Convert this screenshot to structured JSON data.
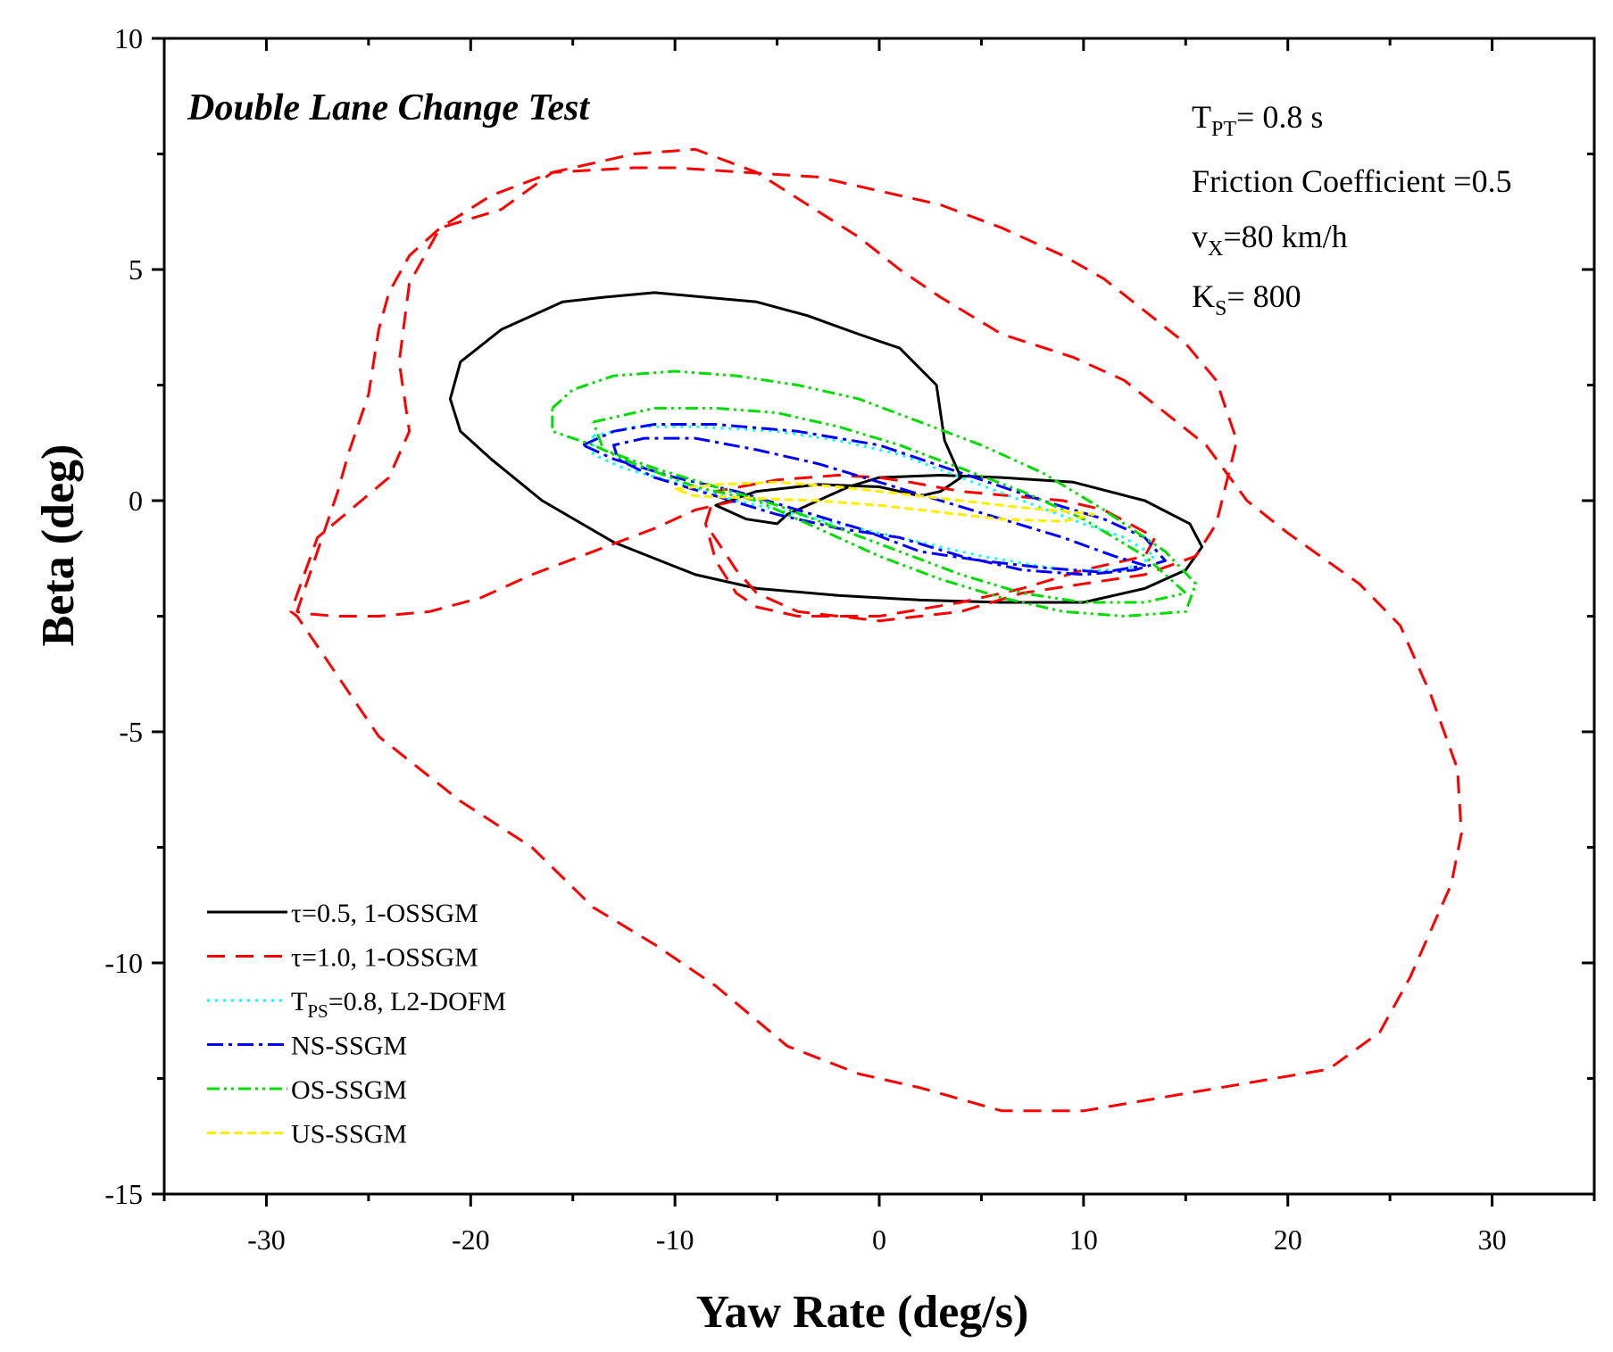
{
  "chart_data": {
    "type": "line",
    "title": "Double Lane Change Test",
    "xlabel": "Yaw Rate (deg/s)",
    "ylabel": "Beta (deg)",
    "xlim": [
      -35,
      35
    ],
    "ylim": [
      -15,
      10
    ],
    "xticks": [
      -30,
      -20,
      -10,
      0,
      10,
      20,
      30
    ],
    "xtick_labels": [
      "-30",
      "-20",
      "-10",
      "0",
      "10",
      "20",
      "30"
    ],
    "yticks": [
      -15,
      -10,
      -5,
      0,
      5,
      10
    ],
    "ytick_labels": [
      "-15",
      "-10",
      "-5",
      "0",
      "5",
      "10"
    ],
    "annotations": {
      "tpt": {
        "main": "T",
        "sub": "PT",
        "rest": "= 0.8 s"
      },
      "friction": "Friction Coefficient =0.5",
      "vx": {
        "main": "v",
        "sub": "X",
        "rest": "=80 km/h"
      },
      "ks": {
        "main": "K",
        "sub": "S",
        "rest": "= 800"
      }
    },
    "series": [
      {
        "name": "τ=0.5, 1-OSSGM",
        "legend": {
          "main": "τ=0.5, 1-OSSGM"
        },
        "color": "#000000",
        "dash": "solid",
        "points": [
          [
            -6.5,
            -0.4
          ],
          [
            -8,
            -0.1
          ],
          [
            -6,
            0.2
          ],
          [
            -3,
            0.35
          ],
          [
            0,
            0.3
          ],
          [
            2,
            0.1
          ],
          [
            3,
            0.2
          ],
          [
            4,
            0.5
          ],
          [
            3.2,
            1.3
          ],
          [
            2.8,
            2.5
          ],
          [
            1,
            3.3
          ],
          [
            -1,
            3.6
          ],
          [
            -3.5,
            4.0
          ],
          [
            -6,
            4.3
          ],
          [
            -8.5,
            4.4
          ],
          [
            -11,
            4.5
          ],
          [
            -13.5,
            4.4
          ],
          [
            -15.5,
            4.3
          ],
          [
            -18.5,
            3.7
          ],
          [
            -20.5,
            3.0
          ],
          [
            -21,
            2.2
          ],
          [
            -20.5,
            1.5
          ],
          [
            -19,
            0.9
          ],
          [
            -16.5,
            0
          ],
          [
            -13,
            -0.9
          ],
          [
            -9,
            -1.6
          ],
          [
            -6,
            -1.9
          ],
          [
            -2,
            -2.05
          ],
          [
            2,
            -2.15
          ],
          [
            6,
            -2.2
          ],
          [
            10,
            -2.2
          ],
          [
            13,
            -1.9
          ],
          [
            15,
            -1.5
          ],
          [
            15.8,
            -1.0
          ],
          [
            15.2,
            -0.5
          ],
          [
            13,
            0
          ],
          [
            9.5,
            0.4
          ],
          [
            6,
            0.5
          ],
          [
            3,
            0.55
          ],
          [
            0,
            0.5
          ],
          [
            -1.5,
            0.3
          ],
          [
            -3,
            0
          ],
          [
            -4.5,
            -0.3
          ],
          [
            -5,
            -0.5
          ],
          [
            -6.5,
            -0.4
          ]
        ]
      },
      {
        "name": "τ=1.0, 1-OSSGM",
        "legend": {
          "main": "τ=1.0, 1-OSSGM"
        },
        "color": "#ff0000",
        "dash": "20 12",
        "points": [
          [
            -7,
            0
          ],
          [
            -9,
            -0.2
          ],
          [
            -11,
            -0.6
          ],
          [
            -14,
            -1.1
          ],
          [
            -17,
            -1.6
          ],
          [
            -19.5,
            -2.1
          ],
          [
            -22,
            -2.4
          ],
          [
            -24.5,
            -2.5
          ],
          [
            -26.5,
            -2.5
          ],
          [
            -28,
            -2.45
          ],
          [
            -28.5,
            -2.4
          ],
          [
            -27.5,
            -1.1
          ],
          [
            -26.5,
            0.2
          ],
          [
            -26,
            1.0
          ],
          [
            -25,
            2.3
          ],
          [
            -24.5,
            3.7
          ],
          [
            -24,
            4.5
          ],
          [
            -23,
            5.3
          ],
          [
            -21.5,
            5.9
          ],
          [
            -19,
            6.6
          ],
          [
            -16,
            7.1
          ],
          [
            -12,
            7.5
          ],
          [
            -9,
            7.6
          ],
          [
            -6,
            7.1
          ],
          [
            -3.5,
            6.4
          ],
          [
            -1,
            5.7
          ],
          [
            1,
            5.0
          ],
          [
            3,
            4.4
          ],
          [
            6,
            3.6
          ],
          [
            9.5,
            3.1
          ],
          [
            12,
            2.6
          ],
          [
            16,
            1.2
          ],
          [
            18,
            0
          ],
          [
            20,
            -0.7
          ],
          [
            23.5,
            -1.8
          ],
          [
            25.5,
            -2.7
          ],
          [
            27,
            -4.2
          ],
          [
            28.3,
            -5.8
          ],
          [
            28.5,
            -7.2
          ],
          [
            28,
            -8.3
          ],
          [
            27,
            -9.3
          ],
          [
            26,
            -10.3
          ],
          [
            24.5,
            -11.5
          ],
          [
            22,
            -12.3
          ],
          [
            18,
            -12.6
          ],
          [
            14,
            -12.9
          ],
          [
            10,
            -13.2
          ],
          [
            6,
            -13.2
          ],
          [
            2,
            -12.7
          ],
          [
            -1,
            -12.4
          ],
          [
            -4.5,
            -11.8
          ],
          [
            -8,
            -10.5
          ],
          [
            -11,
            -9.6
          ],
          [
            -14,
            -8.8
          ],
          [
            -17,
            -7.5
          ],
          [
            -20.5,
            -6.5
          ],
          [
            -24.5,
            -5.1
          ],
          [
            -28.5,
            -2.5
          ],
          [
            -28.8,
            -2.4
          ],
          [
            -27.5,
            -0.8
          ],
          [
            -24,
            0.5
          ],
          [
            -23,
            1.5
          ],
          [
            -23.5,
            3.0
          ],
          [
            -23,
            4.7
          ],
          [
            -21.5,
            5.9
          ],
          [
            -18.5,
            6.3
          ],
          [
            -16,
            7.1
          ],
          [
            -12,
            7.2
          ],
          [
            -10,
            7.2
          ],
          [
            -6.5,
            7.1
          ],
          [
            -3,
            7.0
          ],
          [
            0,
            6.7
          ],
          [
            3,
            6.4
          ],
          [
            6,
            5.9
          ],
          [
            9,
            5.3
          ],
          [
            11,
            4.8
          ],
          [
            13,
            4.1
          ],
          [
            15,
            3.4
          ],
          [
            16.5,
            2.6
          ],
          [
            17.5,
            1.3
          ],
          [
            16.5,
            -0.5
          ],
          [
            15.5,
            -1.2
          ],
          [
            13,
            -1.6
          ],
          [
            10,
            -1.8
          ],
          [
            7,
            -2.0
          ],
          [
            4,
            -2.4
          ],
          [
            0,
            -2.6
          ],
          [
            -4,
            -2.4
          ],
          [
            -6,
            -2.0
          ],
          [
            -7,
            -1.5
          ],
          [
            -8.5,
            -0.5
          ],
          [
            -8,
            0.2
          ],
          [
            -5,
            0.45
          ],
          [
            -2,
            0.55
          ],
          [
            0,
            0.5
          ],
          [
            1.5,
            0.4
          ],
          [
            4,
            0.2
          ],
          [
            6.5,
            0.1
          ],
          [
            9,
            0
          ],
          [
            11,
            -0.2
          ],
          [
            13.5,
            -0.8
          ],
          [
            13,
            -1.2
          ],
          [
            10,
            -1.5
          ],
          [
            7,
            -1.9
          ],
          [
            4,
            -2.2
          ],
          [
            0,
            -2.5
          ],
          [
            -4,
            -2.5
          ],
          [
            -6,
            -2.3
          ],
          [
            -7,
            -2.0
          ],
          [
            -8,
            -1.3
          ],
          [
            -8.5,
            -0.5
          ]
        ]
      },
      {
        "name": "TPS=0.8, L2-DOFM",
        "legend": {
          "main": "T",
          "sub": "PS",
          "rest": "=0.8, L2-DOFM"
        },
        "color": "#00ffff",
        "dash": "3 6",
        "points": [
          [
            -14,
            1.4
          ],
          [
            -12,
            1.6
          ],
          [
            -9,
            1.6
          ],
          [
            -5,
            1.5
          ],
          [
            -2,
            1.3
          ],
          [
            1,
            1.0
          ],
          [
            4,
            0.5
          ],
          [
            7,
            0
          ],
          [
            10,
            -0.5
          ],
          [
            12,
            -0.8
          ],
          [
            13.5,
            -1.2
          ],
          [
            12,
            -1.5
          ],
          [
            9,
            -1.5
          ],
          [
            5,
            -1.2
          ],
          [
            2,
            -0.9
          ],
          [
            -1,
            -0.6
          ],
          [
            -4,
            -0.3
          ],
          [
            -7,
            0
          ],
          [
            -10,
            0.4
          ],
          [
            -12.5,
            0.7
          ],
          [
            -14,
            1.0
          ],
          [
            -14,
            1.4
          ]
        ]
      },
      {
        "name": "NS-SSGM",
        "legend": {
          "main": "NS-SSGM"
        },
        "color": "#0000ff",
        "dash": "18 6 4 6",
        "points": [
          [
            -14.5,
            1.2
          ],
          [
            -13,
            1.5
          ],
          [
            -11,
            1.65
          ],
          [
            -8,
            1.65
          ],
          [
            -4,
            1.5
          ],
          [
            0,
            1.2
          ],
          [
            4,
            0.6
          ],
          [
            8,
            0
          ],
          [
            11,
            -0.4
          ],
          [
            13,
            -0.8
          ],
          [
            14,
            -1.3
          ],
          [
            12.5,
            -1.5
          ],
          [
            10,
            -1.6
          ],
          [
            7,
            -1.5
          ],
          [
            4,
            -1.2
          ],
          [
            1,
            -0.8
          ],
          [
            -2,
            -0.6
          ],
          [
            -5,
            -0.3
          ],
          [
            -8,
            0.1
          ],
          [
            -11,
            0.5
          ],
          [
            -12.8,
            0.9
          ],
          [
            -13,
            1.2
          ],
          [
            -11.5,
            1.35
          ],
          [
            -9,
            1.35
          ],
          [
            -6,
            1.1
          ],
          [
            -3,
            0.8
          ],
          [
            0,
            0.4
          ],
          [
            3,
            0
          ],
          [
            6,
            -0.4
          ],
          [
            9,
            -0.8
          ],
          [
            11.5,
            -1.2
          ],
          [
            13,
            -1.4
          ],
          [
            11,
            -1.55
          ],
          [
            8,
            -1.45
          ],
          [
            5,
            -1.3
          ],
          [
            2,
            -1.1
          ],
          [
            -1,
            -0.6
          ],
          [
            -4,
            -0.2
          ],
          [
            -7,
            0.2
          ],
          [
            -10,
            0.5
          ],
          [
            -13,
            0.9
          ],
          [
            -14.5,
            1.2
          ]
        ]
      },
      {
        "name": "OS-SSGM",
        "legend": {
          "main": "OS-SSGM"
        },
        "color": "#00dd00",
        "dash": "14 5 3 5 3 5",
        "points": [
          [
            -16,
            2.0
          ],
          [
            -15,
            2.4
          ],
          [
            -13,
            2.7
          ],
          [
            -10,
            2.8
          ],
          [
            -7,
            2.7
          ],
          [
            -4,
            2.5
          ],
          [
            -1,
            2.2
          ],
          [
            2,
            1.7
          ],
          [
            5,
            1.2
          ],
          [
            8,
            0.6
          ],
          [
            11,
            -0.2
          ],
          [
            14,
            -1.1
          ],
          [
            15.5,
            -1.8
          ],
          [
            15,
            -2.4
          ],
          [
            12,
            -2.5
          ],
          [
            9,
            -2.4
          ],
          [
            6,
            -2.1
          ],
          [
            3,
            -1.7
          ],
          [
            0,
            -1.2
          ],
          [
            -3,
            -0.6
          ],
          [
            -6,
            0
          ],
          [
            -9,
            0.3
          ],
          [
            -12,
            0.8
          ],
          [
            -14,
            1.2
          ],
          [
            -16,
            1.5
          ],
          [
            -16,
            2.0
          ]
        ]
      },
      {
        "name": "OS-SSGM-inner",
        "legend": {
          "main": ""
        },
        "color": "#00dd00",
        "dash": "14 5 3 5 3 5",
        "points": [
          [
            -14,
            1.7
          ],
          [
            -11,
            2.0
          ],
          [
            -8,
            2.0
          ],
          [
            -5,
            1.9
          ],
          [
            -2,
            1.6
          ],
          [
            1,
            1.2
          ],
          [
            4,
            0.7
          ],
          [
            7,
            0.2
          ],
          [
            10,
            -0.4
          ],
          [
            13,
            -1.2
          ],
          [
            15,
            -2.0
          ],
          [
            13,
            -2.2
          ],
          [
            10,
            -2.2
          ],
          [
            7,
            -2.0
          ],
          [
            4,
            -1.6
          ],
          [
            1,
            -1.1
          ],
          [
            -2,
            -0.6
          ],
          [
            -5,
            -0.1
          ],
          [
            -8,
            0.3
          ],
          [
            -11,
            0.7
          ],
          [
            -13.5,
            1.1
          ],
          [
            -14,
            1.7
          ]
        ]
      },
      {
        "name": "US-SSGM",
        "legend": {
          "main": "US-SSGM"
        },
        "color": "#ffee00",
        "dash": "10 5",
        "points": [
          [
            -10,
            0.25
          ],
          [
            -8,
            0.35
          ],
          [
            -5,
            0.4
          ],
          [
            -2,
            0.3
          ],
          [
            1,
            0.15
          ],
          [
            4,
            0
          ],
          [
            7,
            -0.15
          ],
          [
            9.5,
            -0.25
          ],
          [
            10.5,
            -0.3
          ],
          [
            9,
            -0.45
          ],
          [
            6,
            -0.4
          ],
          [
            3,
            -0.25
          ],
          [
            0,
            -0.1
          ],
          [
            -3,
            0
          ],
          [
            -6,
            0.05
          ],
          [
            -9,
            0.1
          ],
          [
            -10,
            0.25
          ]
        ]
      }
    ]
  }
}
